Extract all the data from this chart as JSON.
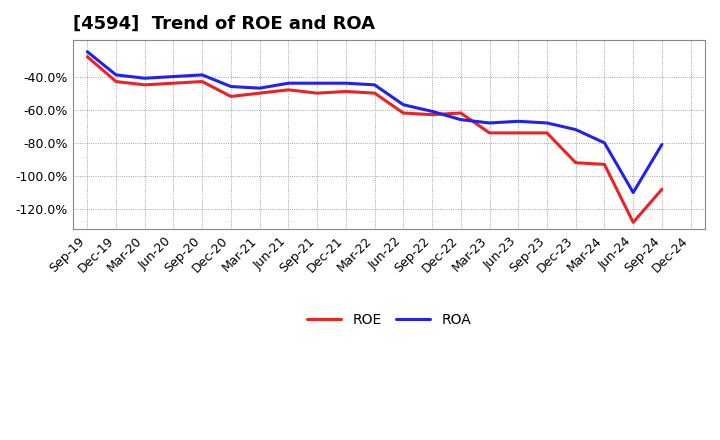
{
  "title": "[4594]  Trend of ROE and ROA",
  "x_labels": [
    "Sep-19",
    "Dec-19",
    "Mar-20",
    "Jun-20",
    "Sep-20",
    "Dec-20",
    "Mar-21",
    "Jun-21",
    "Sep-21",
    "Dec-21",
    "Mar-22",
    "Jun-22",
    "Sep-22",
    "Dec-22",
    "Mar-23",
    "Jun-23",
    "Sep-23",
    "Dec-23",
    "Mar-24",
    "Jun-24",
    "Sep-24",
    "Dec-24"
  ],
  "ROE": [
    -28,
    -43,
    -45,
    -44,
    -43,
    -52,
    -50,
    -48,
    -50,
    -49,
    -50,
    -62,
    -63,
    -62,
    -74,
    -74,
    -74,
    -92,
    -93,
    -128,
    -108,
    null
  ],
  "ROA": [
    -25,
    -39,
    -41,
    -40,
    -39,
    -46,
    -47,
    -44,
    -44,
    -44,
    -45,
    -57,
    -61,
    -66,
    -68,
    -67,
    -68,
    -72,
    -80,
    -110,
    -81,
    null
  ],
  "ylim": [
    -132,
    -18
  ],
  "yticks": [
    -120,
    -100,
    -80,
    -60,
    -40
  ],
  "ytick_labels": [
    "-120.0%",
    "-100.0%",
    "-80.0%",
    "-60.0%",
    "-40.0%"
  ],
  "roe_color": "#ee2222",
  "roa_color": "#2222ee",
  "background_color": "#ffffff",
  "plot_bg_color": "#ffffff",
  "grid_color": "#888888",
  "linewidth": 2.2,
  "legend_roe": "ROE",
  "legend_roa": "ROA",
  "title_fontsize": 13,
  "tick_fontsize": 9
}
